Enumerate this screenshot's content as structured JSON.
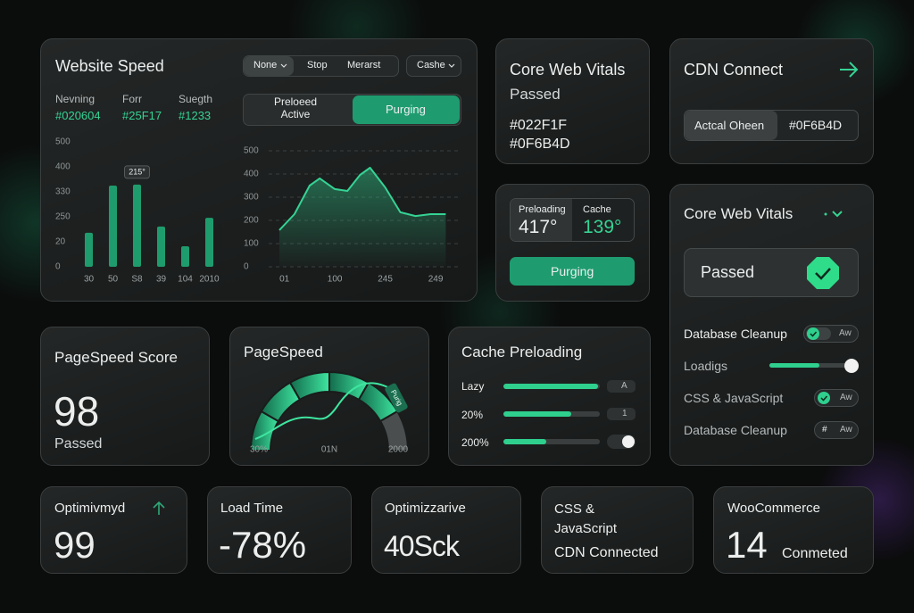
{
  "website_speed": {
    "title": "Website Speed",
    "tabs": [
      "None",
      "Stop",
      "Merarst"
    ],
    "cache_button": "Cashe",
    "stats": [
      {
        "label": "Nevning",
        "value": "#020604"
      },
      {
        "label": "Forr",
        "value": "#25F17"
      },
      {
        "label": "Suegth",
        "value": "#1233"
      }
    ],
    "toggle": [
      "Preloeed Active",
      "Purging"
    ],
    "bar_chart": {
      "type": "bar",
      "callout": "215°",
      "categories": [
        "30",
        "50",
        "S8",
        "39",
        "104",
        "2010"
      ],
      "values": [
        136,
        325,
        329,
        161,
        82,
        196
      ],
      "ylim": [
        0,
        500
      ],
      "yticks": [
        0,
        {
          "value": 100,
          "label": "20"
        },
        {
          "value": 200,
          "label": "250"
        },
        {
          "value": 300,
          "label": "330"
        },
        400,
        500
      ],
      "color": "#1f9c6d"
    },
    "area_chart": {
      "type": "area",
      "x": [
        -10,
        20,
        50,
        70,
        100,
        125,
        150,
        170,
        200,
        230,
        260,
        290,
        320
      ],
      "values": [
        158,
        227,
        350,
        381,
        335,
        327,
        396,
        427,
        342,
        235,
        219,
        227,
        227
      ],
      "xlim": [
        -10,
        330
      ],
      "xticks": [
        {
          "value": 0,
          "label": "01"
        },
        100,
        {
          "value": 200,
          "label": "245"
        },
        {
          "value": 300,
          "label": "249"
        }
      ],
      "ylim": [
        0,
        500
      ],
      "yticks": [
        0,
        100,
        200,
        300,
        400,
        500
      ],
      "color": "#35d394",
      "grid": true
    }
  },
  "core_web_vitals": {
    "title": "Core Web Vitals",
    "status": "Passed",
    "codes": [
      "#022F1F",
      "#0F6B4D"
    ]
  },
  "cdn_connect": {
    "title": "CDN Connect",
    "segments": [
      "Actcal Oheen",
      "#0F6B4D"
    ]
  },
  "preloading": {
    "preloading_label": "Preloading",
    "preloading_value": "417°",
    "cache_label": "Cache",
    "cache_value": "139°",
    "button": "Purging"
  },
  "vitals_panel": {
    "title": "Core Web Vitals",
    "status": "Passed",
    "settings": [
      {
        "label": "Database Cleanup",
        "control": "Aw"
      },
      {
        "label": "Loadigs"
      },
      {
        "label": "CSS & JavaScript",
        "control": "Aw"
      },
      {
        "label": "Database Cleanup",
        "icon": "#",
        "control": "Aw"
      }
    ]
  },
  "pagespeed_score": {
    "title": "PageSpeed Score",
    "score": 98,
    "status": "Passed"
  },
  "pagespeed_gauge": {
    "title": "PageSpeed",
    "tag": "Purig",
    "labels": [
      "30%",
      "01N",
      "2000"
    ]
  },
  "cache_preloading": {
    "title": "Cache Preloading",
    "rows": [
      {
        "label": "Lazy",
        "chip": "A"
      },
      {
        "label": "20%",
        "chip": "1"
      },
      {
        "label": "200%"
      }
    ]
  },
  "stats": [
    {
      "label": "Optimivmyd",
      "value": 99
    },
    {
      "label": "Load Time",
      "value": "-78%"
    },
    {
      "label": "Optimizzarive",
      "value": "40Sck"
    },
    {
      "label": "CSS & JavaScript",
      "value": "CDN Connected"
    },
    {
      "label": "WooCommerce",
      "value": 14,
      "unit": "Conmeted"
    }
  ]
}
